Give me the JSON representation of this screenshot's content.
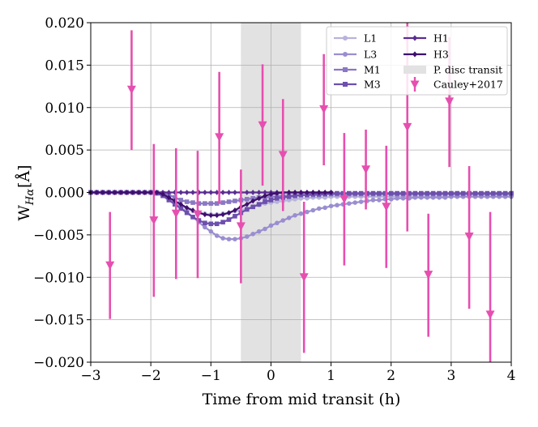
{
  "chart_data": {
    "type": "line",
    "xlabel": "Time from mid transit (h)",
    "ylabel": "W",
    "ylabel_subscript": "Hα",
    "ylabel_unit": "[Å]",
    "xlim": [
      -3,
      4
    ],
    "ylim": [
      -0.02,
      0.02
    ],
    "x_ticks": [
      -3,
      -2,
      -1,
      0,
      1,
      2,
      3,
      4
    ],
    "x_tick_labels": [
      "−3",
      "−2",
      "−1",
      "0",
      "1",
      "2",
      "3",
      "4"
    ],
    "y_ticks": [
      -0.02,
      -0.015,
      -0.01,
      -0.005,
      0.0,
      0.005,
      0.01,
      0.015,
      0.02
    ],
    "y_tick_labels": [
      "−0.020",
      "−0.015",
      "−0.010",
      "−0.005",
      "0.000",
      "0.005",
      "0.010",
      "0.015",
      "0.020"
    ],
    "grid": true,
    "legend_position": "top-right",
    "shaded_region": {
      "name": "P. disc transit",
      "x0": -0.5,
      "x1": 0.5,
      "color": "#e2e2e2"
    },
    "series": [
      {
        "name": "L1",
        "color": "#b7b3dc",
        "marker": "circle",
        "x_start": -3.0,
        "x_step": 0.1,
        "values": [
          0,
          0,
          0,
          0,
          0,
          0,
          0,
          0,
          0,
          0,
          0,
          -0.0001,
          -0.0004,
          -0.0008,
          -0.0012,
          -0.0016,
          -0.0019,
          -0.0022,
          -0.0024,
          -0.0025,
          -0.0026,
          -0.0026,
          -0.0025,
          -0.0024,
          -0.0022,
          -0.0021,
          -0.0019,
          -0.0017,
          -0.0015,
          -0.0013,
          -0.0012,
          -0.0011,
          -0.001,
          -0.0009,
          -0.0008,
          -0.0007,
          -0.0007,
          -0.0006,
          -0.0006,
          -0.0006,
          -0.0005,
          -0.0005,
          -0.0005,
          -0.0005,
          -0.0005,
          -0.0005,
          -0.0005,
          -0.0005,
          -0.0005,
          -0.0005,
          -0.0005,
          -0.0005,
          -0.0005,
          -0.0005,
          -0.0005,
          -0.0005,
          -0.0005,
          -0.0005,
          -0.0005,
          -0.0005,
          -0.0005,
          -0.0005,
          -0.0005,
          -0.0005,
          -0.0005,
          -0.0005,
          -0.0005,
          -0.0005,
          -0.0005,
          -0.0005,
          -0.0005
        ]
      },
      {
        "name": "L3",
        "color": "#9a8ed0",
        "marker": "circle",
        "x_start": -3.0,
        "x_step": 0.1,
        "values": [
          0,
          0,
          0,
          0,
          0,
          0,
          0,
          0,
          0,
          0,
          0,
          -0.0001,
          -0.0004,
          -0.0008,
          -0.0013,
          -0.0018,
          -0.0023,
          -0.0029,
          -0.0035,
          -0.0041,
          -0.0046,
          -0.0051,
          -0.0054,
          -0.0055,
          -0.0055,
          -0.0054,
          -0.0052,
          -0.0049,
          -0.0046,
          -0.0043,
          -0.0039,
          -0.0036,
          -0.0033,
          -0.003,
          -0.0027,
          -0.0025,
          -0.0023,
          -0.0021,
          -0.0019,
          -0.0018,
          -0.0016,
          -0.0015,
          -0.0014,
          -0.0013,
          -0.0012,
          -0.0011,
          -0.001,
          -0.0009,
          -0.0009,
          -0.0008,
          -0.0008,
          -0.0007,
          -0.0007,
          -0.0007,
          -0.0006,
          -0.0006,
          -0.0006,
          -0.0006,
          -0.0006,
          -0.0006,
          -0.0005,
          -0.0005,
          -0.0005,
          -0.0005,
          -0.0005,
          -0.0005,
          -0.0005,
          -0.0005,
          -0.0005,
          -0.0005,
          -0.0005
        ]
      },
      {
        "name": "M1",
        "color": "#8a78c4",
        "marker": "square",
        "x_start": -3.0,
        "x_step": 0.1,
        "values": [
          0,
          0,
          0,
          0,
          0,
          0,
          0,
          0,
          0,
          0,
          0,
          0,
          -0.0001,
          -0.0003,
          -0.0006,
          -0.0009,
          -0.0011,
          -0.0012,
          -0.0013,
          -0.0013,
          -0.0013,
          -0.0013,
          -0.0012,
          -0.0011,
          -0.001,
          -0.0009,
          -0.0008,
          -0.0007,
          -0.0006,
          -0.0006,
          -0.0005,
          -0.0005,
          -0.0004,
          -0.0004,
          -0.0004,
          -0.0003,
          -0.0003,
          -0.0003,
          -0.0003,
          -0.0002,
          -0.0002,
          -0.0002,
          -0.0002,
          -0.0002,
          -0.0002,
          -0.0002,
          -0.0002,
          -0.0002,
          -0.0002,
          -0.0002,
          -0.0002,
          -0.0002,
          -0.0002,
          -0.0002,
          -0.0002,
          -0.0002,
          -0.0002,
          -0.0002,
          -0.0002,
          -0.0002,
          -0.0002,
          -0.0002,
          -0.0002,
          -0.0002,
          -0.0002,
          -0.0002,
          -0.0002,
          -0.0002,
          -0.0002,
          -0.0002,
          -0.0002
        ]
      },
      {
        "name": "M3",
        "color": "#6d4fae",
        "marker": "square",
        "x_start": -3.0,
        "x_step": 0.1,
        "values": [
          0,
          0,
          0,
          0,
          0,
          0,
          0,
          0,
          0,
          0,
          0,
          -0.0001,
          -0.0004,
          -0.0009,
          -0.0014,
          -0.0019,
          -0.0024,
          -0.0029,
          -0.0033,
          -0.0036,
          -0.0037,
          -0.0037,
          -0.0035,
          -0.0032,
          -0.0028,
          -0.0024,
          -0.002,
          -0.0017,
          -0.0014,
          -0.0011,
          -0.0009,
          -0.0007,
          -0.0006,
          -0.0005,
          -0.0004,
          -0.0003,
          -0.0003,
          -0.0002,
          -0.0002,
          -0.0002,
          -0.0001,
          -0.0001,
          -0.0001,
          -0.0001,
          -0.0001,
          -0.0001,
          -0.0001,
          -0.0001,
          -0.0001,
          -0.0001,
          -0.0001,
          -0.0001,
          -0.0001,
          -0.0001,
          -0.0001,
          -0.0001,
          -0.0001,
          -0.0001,
          -0.0001,
          -0.0001,
          -0.0001,
          -0.0001,
          -0.0001,
          -0.0001,
          -0.0001,
          -0.0001,
          -0.0001,
          -0.0001,
          -0.0001,
          -0.0001,
          -0.0001
        ]
      },
      {
        "name": "H1",
        "color": "#5a2d91",
        "marker": "diamond",
        "x_start": -3.0,
        "x_step": 0.1,
        "values": [
          0,
          0,
          0,
          0,
          0,
          0,
          0,
          0,
          0,
          0,
          0,
          0,
          0,
          0,
          0,
          0,
          0,
          0,
          0,
          0,
          0,
          0,
          0,
          0,
          0,
          0,
          0,
          0,
          0,
          0,
          0,
          0,
          0,
          0,
          0,
          0,
          0,
          0,
          0,
          0,
          0
        ]
      },
      {
        "name": "H3",
        "color": "#3f0f6e",
        "marker": "diamond",
        "x_start": -3.0,
        "x_step": 0.1,
        "values": [
          0,
          0,
          0,
          0,
          0,
          0,
          0,
          0,
          0,
          0,
          0,
          0,
          -0.0002,
          -0.0006,
          -0.001,
          -0.0014,
          -0.0018,
          -0.0021,
          -0.0024,
          -0.0026,
          -0.0027,
          -0.0027,
          -0.0026,
          -0.0024,
          -0.0021,
          -0.0017,
          -0.0014,
          -0.001,
          -0.0007,
          -0.0004,
          -0.0002,
          -0.0001,
          0,
          0,
          0,
          0,
          0,
          0,
          0,
          0,
          0
        ]
      }
    ],
    "observations": {
      "name": "Cauley+2017",
      "color": "#e64fb0",
      "marker": "triangle-down",
      "points": [
        {
          "x": -2.68,
          "y": -0.0086,
          "lo": -0.0149,
          "hi": -0.0023
        },
        {
          "x": -2.32,
          "y": 0.0121,
          "lo": 0.005,
          "hi": 0.0191
        },
        {
          "x": -1.95,
          "y": -0.0033,
          "lo": -0.0123,
          "hi": 0.0057
        },
        {
          "x": -1.58,
          "y": -0.0025,
          "lo": -0.0102,
          "hi": 0.0052
        },
        {
          "x": -1.22,
          "y": -0.0026,
          "lo": -0.0101,
          "hi": 0.0049
        },
        {
          "x": -0.86,
          "y": 0.0065,
          "lo": -0.0013,
          "hi": 0.0142
        },
        {
          "x": -0.5,
          "y": -0.004,
          "lo": -0.0107,
          "hi": 0.0027
        },
        {
          "x": -0.14,
          "y": 0.0079,
          "lo": 0.0008,
          "hi": 0.0151
        },
        {
          "x": 0.2,
          "y": 0.0044,
          "lo": -0.0022,
          "hi": 0.011
        },
        {
          "x": 0.55,
          "y": -0.01,
          "lo": -0.0189,
          "hi": -0.0011
        },
        {
          "x": 0.88,
          "y": 0.0098,
          "lo": 0.0032,
          "hi": 0.0163
        },
        {
          "x": 1.22,
          "y": -0.0008,
          "lo": -0.0086,
          "hi": 0.007
        },
        {
          "x": 1.58,
          "y": 0.0027,
          "lo": -0.002,
          "hi": 0.0074
        },
        {
          "x": 1.92,
          "y": -0.0017,
          "lo": -0.0089,
          "hi": 0.0055
        },
        {
          "x": 2.27,
          "y": 0.0077,
          "lo": -0.0046,
          "hi": 0.02
        },
        {
          "x": 2.62,
          "y": -0.0097,
          "lo": -0.017,
          "hi": -0.0025
        },
        {
          "x": 2.97,
          "y": 0.0107,
          "lo": 0.003,
          "hi": 0.0183
        },
        {
          "x": 3.3,
          "y": -0.0052,
          "lo": -0.0137,
          "hi": 0.0031
        },
        {
          "x": 3.65,
          "y": -0.0144,
          "lo": -0.02,
          "hi": -0.0023
        }
      ]
    }
  }
}
